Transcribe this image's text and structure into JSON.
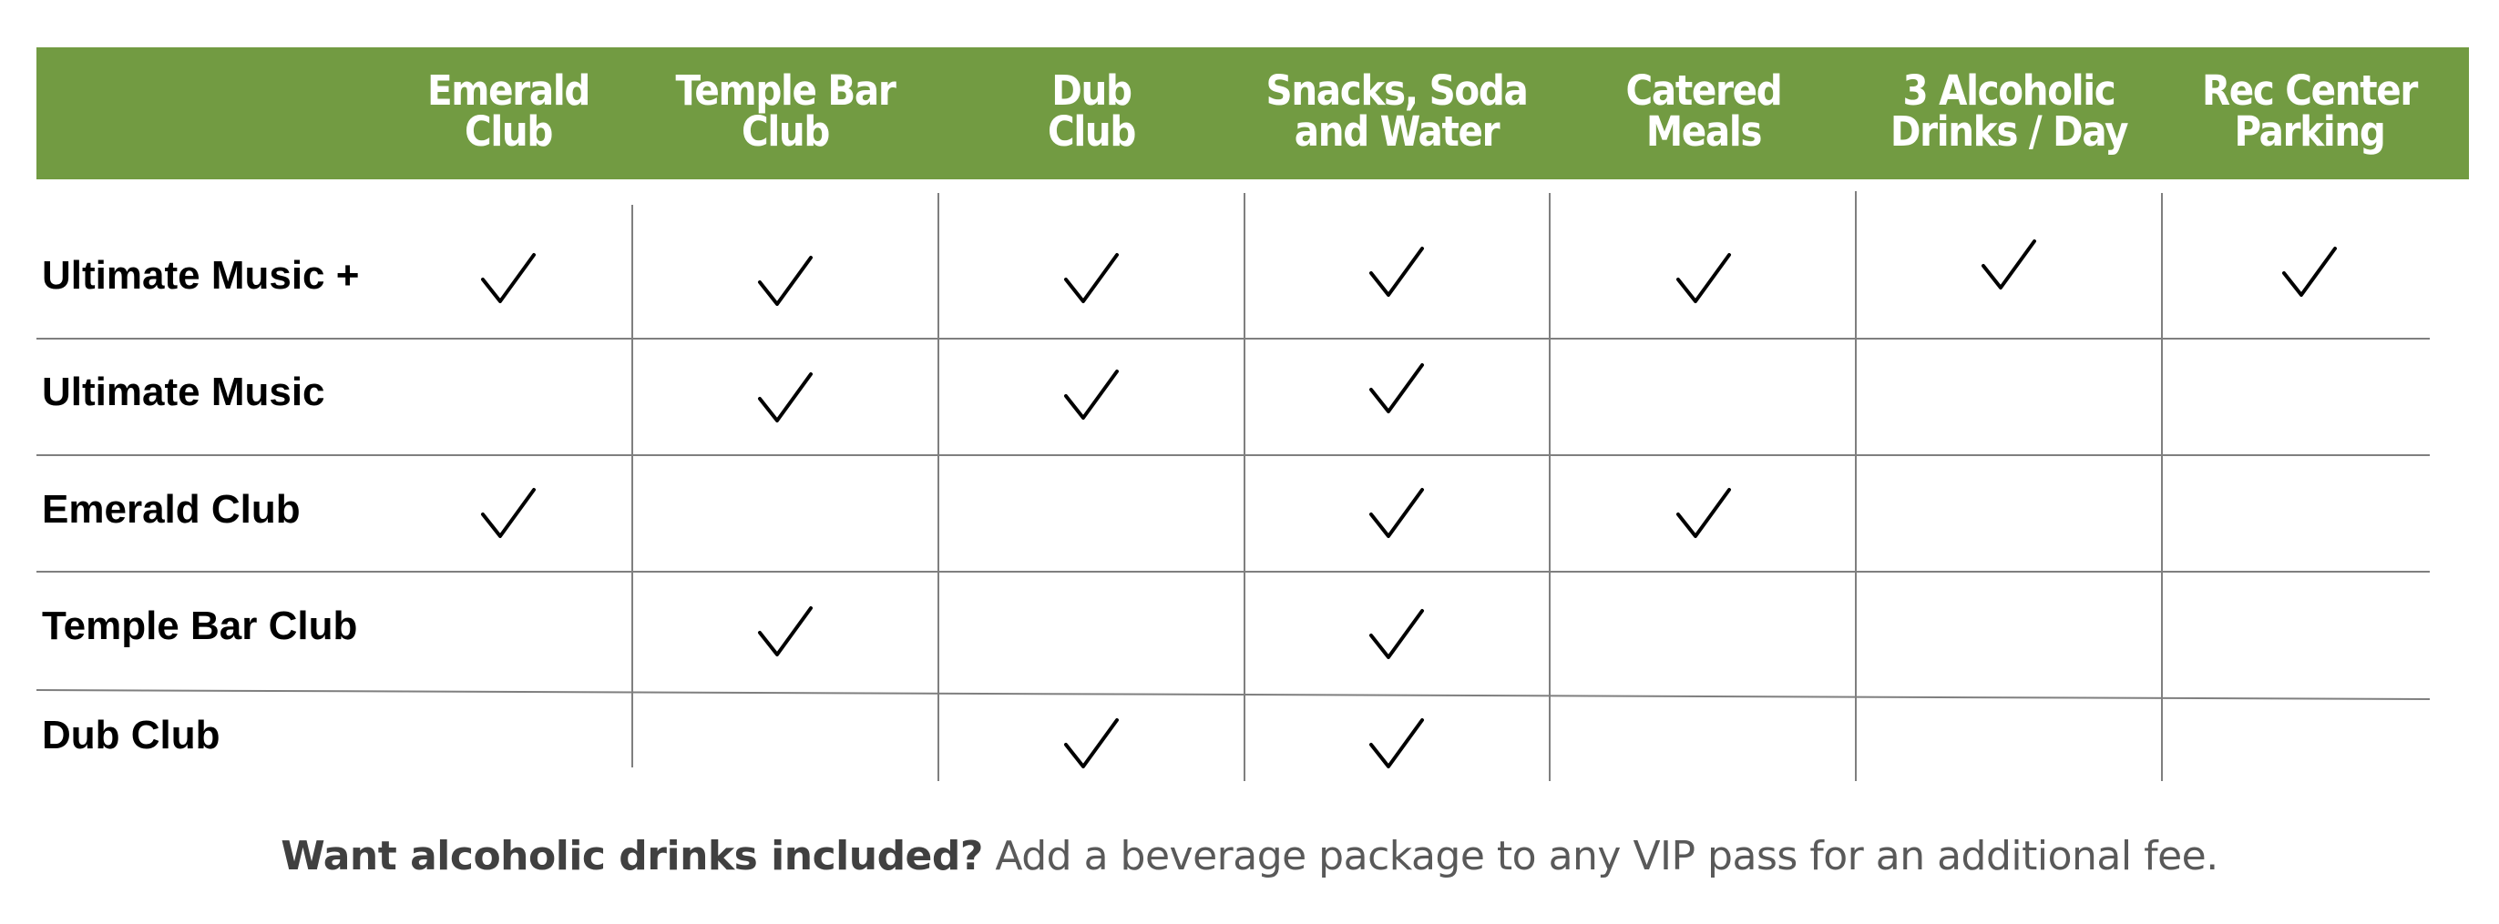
{
  "colors": {
    "header_green": "#729b42",
    "header_text": "#ffffff",
    "row_text": "#000000",
    "grid_line": "#7f7f7f",
    "check": "#000000",
    "footer_text": "#595959"
  },
  "columns": [
    {
      "lines": [
        "Emerald",
        "Club"
      ]
    },
    {
      "lines": [
        "Temple Bar",
        "Club"
      ]
    },
    {
      "lines": [
        "Dub",
        "Club"
      ]
    },
    {
      "lines": [
        "Snacks, Soda",
        "and Water"
      ]
    },
    {
      "lines": [
        "Catered",
        "Meals"
      ]
    },
    {
      "lines": [
        "3 Alcoholic",
        "Drinks / Day"
      ]
    },
    {
      "lines": [
        "Rec Center",
        "Parking"
      ]
    }
  ],
  "rows": [
    {
      "label": "Ultimate Music +",
      "checks": [
        true,
        true,
        true,
        true,
        true,
        true,
        true
      ]
    },
    {
      "label": "Ultimate Music",
      "checks": [
        false,
        true,
        true,
        true,
        false,
        false,
        false
      ]
    },
    {
      "label": "Emerald Club",
      "checks": [
        true,
        false,
        false,
        true,
        true,
        false,
        false
      ]
    },
    {
      "label": "Temple Bar Club",
      "checks": [
        false,
        true,
        false,
        true,
        false,
        false,
        false
      ]
    },
    {
      "label": "Dub Club",
      "checks": [
        false,
        false,
        true,
        true,
        false,
        false,
        false
      ]
    }
  ],
  "footer": {
    "bold": "Want alcoholic drinks included?",
    "rest": " Add a beverage package to any VIP pass for an additional fee."
  },
  "icons": {
    "check": "checkmark-icon"
  }
}
